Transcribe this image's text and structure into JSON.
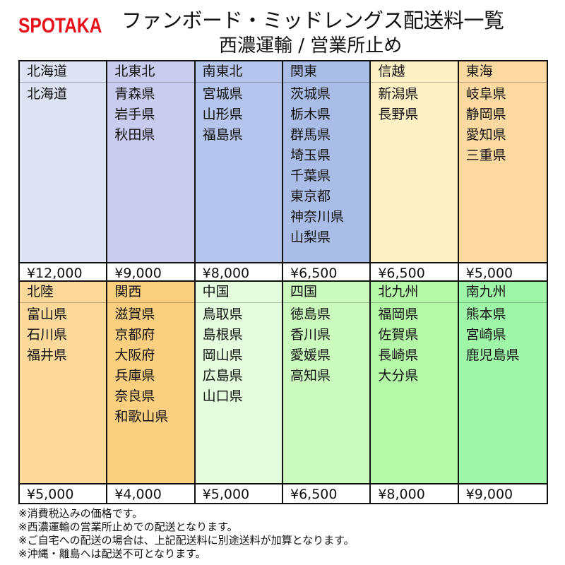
{
  "logo": "SPOTAKA",
  "title": "ファンボード・ミッドレングス配送料一覧",
  "subtitle": "西濃運輸 / 営業所止め",
  "regions": [
    {
      "name": "北海道",
      "prefectures": [
        "北海道"
      ],
      "price": "¥12,000",
      "color": "#dde3f3"
    },
    {
      "name": "北東北",
      "prefectures": [
        "青森県",
        "岩手県",
        "秋田県"
      ],
      "price": "¥9,000",
      "color": "#c9ccee"
    },
    {
      "name": "南東北",
      "prefectures": [
        "宮城県",
        "山形県",
        "福島県"
      ],
      "price": "¥8,000",
      "color": "#b5c5ec"
    },
    {
      "name": "関東",
      "prefectures": [
        "茨城県",
        "栃木県",
        "群馬県",
        "埼玉県",
        "千葉県",
        "東京都",
        "神奈川県",
        "山梨県"
      ],
      "price": "¥6,500",
      "color": "#a9bde6"
    },
    {
      "name": "信越",
      "prefectures": [
        "新潟県",
        "長野県"
      ],
      "price": "¥6,500",
      "color": "#fdf0c4"
    },
    {
      "name": "東海",
      "prefectures": [
        "岐阜県",
        "静岡県",
        "愛知県",
        "三重県"
      ],
      "price": "¥5,000",
      "color": "#fbd9a0"
    },
    {
      "name": "北陸",
      "prefectures": [
        "富山県",
        "石川県",
        "福井県"
      ],
      "price": "¥5,000",
      "color": "#fbd99a"
    },
    {
      "name": "関西",
      "prefectures": [
        "滋賀県",
        "京都府",
        "大阪府",
        "兵庫県",
        "奈良県",
        "和歌山県"
      ],
      "price": "¥4,000",
      "color": "#fbcf80"
    },
    {
      "name": "中国",
      "prefectures": [
        "鳥取県",
        "島根県",
        "岡山県",
        "広島県",
        "山口県"
      ],
      "price": "¥5,000",
      "color": "#e4fddc"
    },
    {
      "name": "四国",
      "prefectures": [
        "徳島県",
        "香川県",
        "愛媛県",
        "高知県"
      ],
      "price": "¥6,500",
      "color": "#cbfcbe"
    },
    {
      "name": "北九州",
      "prefectures": [
        "福岡県",
        "佐賀県",
        "長崎県",
        "大分県"
      ],
      "price": "¥8,000",
      "color": "#b4f8a8"
    },
    {
      "name": "南九州",
      "prefectures": [
        "熊本県",
        "宮崎県",
        "鹿児島県"
      ],
      "price": "¥9,000",
      "color": "#a0f6a8"
    }
  ],
  "notes": [
    "※消費税込みの価格です。",
    "※西濃運輸の営業所止めでの配送となります。",
    "※ご自宅への配送の場合は、上記配送料に別途送料が加算となります。",
    "※沖縄・離島へは配送不可となります。"
  ]
}
